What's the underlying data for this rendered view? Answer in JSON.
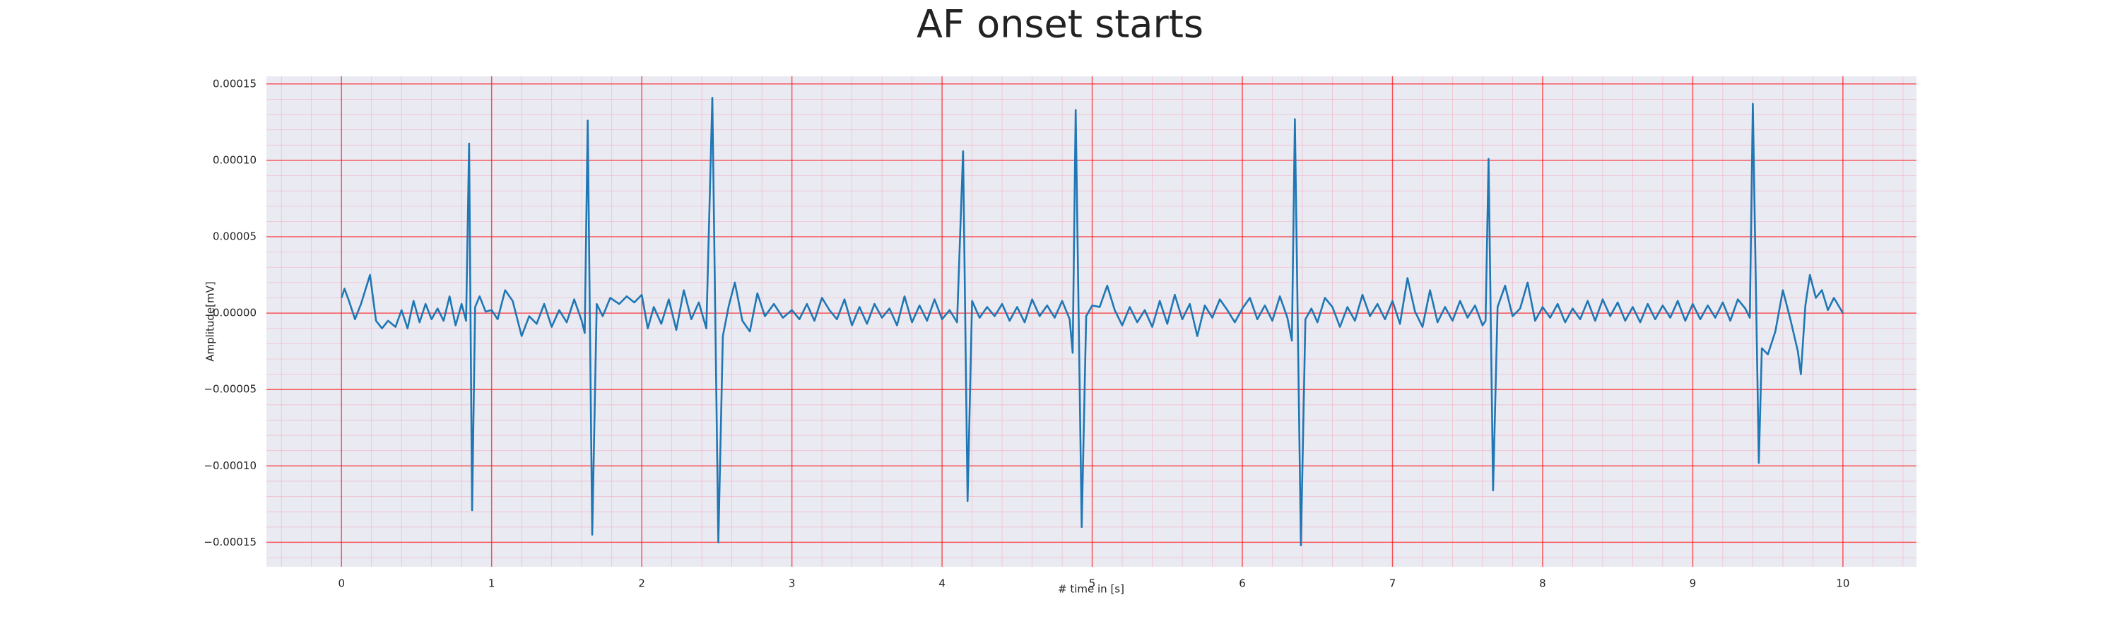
{
  "chart_data": {
    "type": "line",
    "title": "AF onset starts",
    "xlabel": "# time in [s]",
    "ylabel": "Amplitude[mV]",
    "color": "#1f77b4",
    "grid": true,
    "minor_grid": true,
    "xlim": [
      -0.5,
      10.49
    ],
    "ylim": [
      -0.000166,
      0.000155
    ],
    "xticks": [
      0,
      1,
      2,
      3,
      4,
      5,
      6,
      7,
      8,
      9,
      10
    ],
    "yticks": [
      {
        "value": -0.00015,
        "label": "−0.00015"
      },
      {
        "value": -0.0001,
        "label": "−0.00010"
      },
      {
        "value": -5e-05,
        "label": "−0.00005"
      },
      {
        "value": 0,
        "label": "0.00000"
      },
      {
        "value": 5e-05,
        "label": "0.00005"
      },
      {
        "value": 0.0001,
        "label": "0.00010"
      },
      {
        "value": 0.00015,
        "label": "0.00015"
      }
    ],
    "x": [
      0,
      0.02,
      0.05,
      0.09,
      0.13,
      0.19,
      0.23,
      0.27,
      0.31,
      0.36,
      0.4,
      0.44,
      0.48,
      0.52,
      0.56,
      0.6,
      0.64,
      0.68,
      0.72,
      0.76,
      0.8,
      0.83,
      0.85,
      0.87,
      0.89,
      0.92,
      0.96,
      1.0,
      1.04,
      1.09,
      1.14,
      1.2,
      1.25,
      1.3,
      1.35,
      1.4,
      1.45,
      1.5,
      1.55,
      1.6,
      1.62,
      1.64,
      1.67,
      1.7,
      1.74,
      1.79,
      1.85,
      1.9,
      1.95,
      2.0,
      2.04,
      2.08,
      2.13,
      2.18,
      2.23,
      2.28,
      2.33,
      2.38,
      2.43,
      2.47,
      2.51,
      2.54,
      2.58,
      2.62,
      2.67,
      2.72,
      2.77,
      2.82,
      2.88,
      2.94,
      3.0,
      3.05,
      3.1,
      3.15,
      3.2,
      3.25,
      3.3,
      3.35,
      3.4,
      3.45,
      3.5,
      3.55,
      3.6,
      3.65,
      3.7,
      3.75,
      3.8,
      3.85,
      3.9,
      3.95,
      4.0,
      4.05,
      4.1,
      4.14,
      4.17,
      4.2,
      4.25,
      4.3,
      4.35,
      4.4,
      4.45,
      4.5,
      4.55,
      4.6,
      4.65,
      4.7,
      4.75,
      4.8,
      4.85,
      4.87,
      4.89,
      4.93,
      4.96,
      5.0,
      5.05,
      5.1,
      5.15,
      5.2,
      5.25,
      5.3,
      5.35,
      5.4,
      5.45,
      5.5,
      5.55,
      5.6,
      5.65,
      5.7,
      5.75,
      5.8,
      5.85,
      5.9,
      5.95,
      6.0,
      6.05,
      6.1,
      6.15,
      6.2,
      6.25,
      6.3,
      6.33,
      6.35,
      6.39,
      6.42,
      6.46,
      6.5,
      6.55,
      6.6,
      6.65,
      6.7,
      6.75,
      6.8,
      6.85,
      6.9,
      6.95,
      7.0,
      7.05,
      7.1,
      7.15,
      7.2,
      7.25,
      7.3,
      7.35,
      7.4,
      7.45,
      7.5,
      7.55,
      7.6,
      7.62,
      7.64,
      7.67,
      7.7,
      7.75,
      7.8,
      7.85,
      7.9,
      7.95,
      8.0,
      8.05,
      8.1,
      8.15,
      8.2,
      8.25,
      8.3,
      8.35,
      8.4,
      8.45,
      8.5,
      8.55,
      8.6,
      8.65,
      8.7,
      8.75,
      8.8,
      8.85,
      8.9,
      8.95,
      9.0,
      9.05,
      9.1,
      9.15,
      9.2,
      9.25,
      9.3,
      9.35,
      9.38,
      9.4,
      9.44,
      9.46,
      9.5,
      9.55,
      9.6,
      9.65,
      9.7,
      9.72,
      9.75,
      9.78,
      9.82,
      9.86,
      9.9,
      9.94,
      10.0
    ],
    "values": [
      1e-05,
      1.6e-05,
      8e-06,
      -4e-06,
      6e-06,
      2.5e-05,
      -5e-06,
      -1e-05,
      -5e-06,
      -9e-06,
      2e-06,
      -1e-05,
      8e-06,
      -6e-06,
      6e-06,
      -4e-06,
      3e-06,
      -5e-06,
      1.1e-05,
      -8e-06,
      6e-06,
      -5e-06,
      0.000111,
      -0.000129,
      4e-06,
      1.1e-05,
      1e-06,
      2e-06,
      -4e-06,
      1.5e-05,
      8e-06,
      -1.5e-05,
      -2e-06,
      -7e-06,
      6e-06,
      -9e-06,
      2e-06,
      -6e-06,
      9e-06,
      -5e-06,
      -1.3e-05,
      0.000126,
      -0.000145,
      6e-06,
      -2e-06,
      1e-05,
      6e-06,
      1.1e-05,
      7e-06,
      1.2e-05,
      -1e-05,
      4e-06,
      -7e-06,
      9e-06,
      -1.1e-05,
      1.5e-05,
      -4e-06,
      7e-06,
      -1e-05,
      0.000141,
      -0.00015,
      -1.5e-05,
      5e-06,
      2e-05,
      -5e-06,
      -1.2e-05,
      1.3e-05,
      -2e-06,
      6e-06,
      -3e-06,
      2e-06,
      -4e-06,
      6e-06,
      -5e-06,
      1e-05,
      2e-06,
      -4e-06,
      9e-06,
      -8e-06,
      4e-06,
      -7e-06,
      6e-06,
      -3e-06,
      3e-06,
      -8e-06,
      1.1e-05,
      -6e-06,
      5e-06,
      -5e-06,
      9e-06,
      -4e-06,
      2e-06,
      -6e-06,
      0.000106,
      -0.000123,
      8e-06,
      -3e-06,
      4e-06,
      -2e-06,
      6e-06,
      -5e-06,
      4e-06,
      -6e-06,
      9e-06,
      -2e-06,
      5e-06,
      -3e-06,
      8e-06,
      -4e-06,
      -2.6e-05,
      0.000133,
      -0.00014,
      -2e-06,
      5e-06,
      4e-06,
      1.8e-05,
      2e-06,
      -8e-06,
      4e-06,
      -6e-06,
      2e-06,
      -9e-06,
      8e-06,
      -7e-06,
      1.2e-05,
      -4e-06,
      6e-06,
      -1.5e-05,
      5e-06,
      -3e-06,
      9e-06,
      2e-06,
      -6e-06,
      3e-06,
      1e-05,
      -4e-06,
      5e-06,
      -5e-06,
      1.1e-05,
      -3e-06,
      -1.8e-05,
      0.000127,
      -0.000152,
      -4e-06,
      3e-06,
      -6e-06,
      1e-05,
      4e-06,
      -9e-06,
      4e-06,
      -5e-06,
      1.2e-05,
      -2e-06,
      6e-06,
      -4e-06,
      8e-06,
      -7e-06,
      2.3e-05,
      1e-06,
      -9e-06,
      1.5e-05,
      -6e-06,
      4e-06,
      -5e-06,
      8e-06,
      -3e-06,
      5e-06,
      -8e-06,
      -5e-06,
      0.000101,
      -0.000116,
      4e-06,
      1.8e-05,
      -2e-06,
      3e-06,
      2e-05,
      -5e-06,
      4e-06,
      -3e-06,
      6e-06,
      -6e-06,
      3e-06,
      -4e-06,
      8e-06,
      -5e-06,
      9e-06,
      -2e-06,
      7e-06,
      -5e-06,
      4e-06,
      -6e-06,
      6e-06,
      -4e-06,
      5e-06,
      -3e-06,
      8e-06,
      -5e-06,
      6e-06,
      -4e-06,
      5e-06,
      -3e-06,
      7e-06,
      -5e-06,
      9e-06,
      3e-06,
      -3e-06,
      0.000137,
      -9.8e-05,
      -2.3e-05,
      -2.7e-05,
      -1.2e-05,
      1.5e-05,
      -4e-06,
      -2.5e-05,
      -4e-05,
      5e-06,
      2.5e-05,
      1e-05,
      1.5e-05,
      2e-06,
      1e-05,
      0
    ]
  }
}
